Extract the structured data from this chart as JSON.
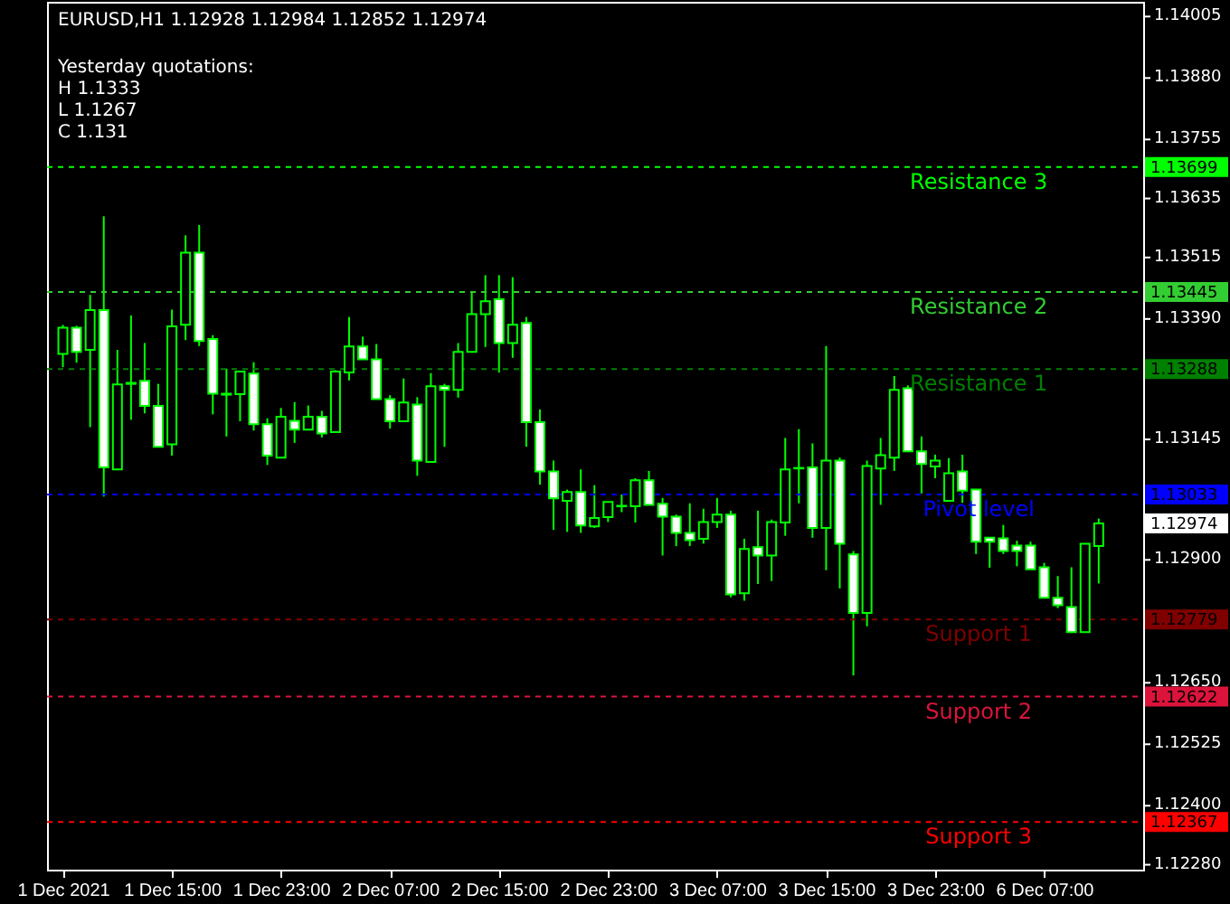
{
  "chart_data": {
    "type": "candlestick",
    "title": "EURUSD,H1  1.12928 1.12984 1.12852 1.12974",
    "color": "#00ff00",
    "categories": [
      "1 Dec 2021",
      null,
      null,
      null,
      null,
      null,
      null,
      null,
      "1 Dec 15:00",
      null,
      null,
      null,
      null,
      null,
      null,
      null,
      "1 Dec 23:00",
      null,
      null,
      null,
      null,
      null,
      null,
      null,
      "2 Dec 07:00",
      null,
      null,
      null,
      null,
      null,
      null,
      null,
      "2 Dec 15:00",
      null,
      null,
      null,
      null,
      null,
      null,
      null,
      "2 Dec 23:00",
      null,
      null,
      null,
      null,
      null,
      null,
      null,
      "3 Dec 07:00",
      null,
      null,
      null,
      null,
      null,
      null,
      null,
      "3 Dec 15:00",
      null,
      null,
      null,
      null,
      null,
      null,
      null,
      "3 Dec 23:00",
      null,
      null,
      null,
      null,
      null,
      null,
      null,
      "6 Dec 07:00",
      null,
      null,
      null,
      null
    ],
    "ohlc": [
      [
        1.13319,
        1.13378,
        1.13292,
        1.13372
      ],
      [
        1.13372,
        1.13376,
        1.13301,
        1.13323
      ],
      [
        1.13327,
        1.13439,
        1.1317,
        1.13408
      ],
      [
        1.13408,
        1.13599,
        1.13029,
        1.13088
      ],
      [
        1.13084,
        1.13327,
        1.13084,
        1.13257
      ],
      [
        1.13258,
        1.13397,
        1.13185,
        1.1326
      ],
      [
        1.13264,
        1.13341,
        1.13198,
        1.13213
      ],
      [
        1.13213,
        1.13258,
        1.1313,
        1.1313
      ],
      [
        1.13135,
        1.13409,
        1.13112,
        1.13375
      ],
      [
        1.13378,
        1.1356,
        1.13347,
        1.13525
      ],
      [
        1.13525,
        1.13581,
        1.13335,
        1.13345
      ],
      [
        1.13349,
        1.13357,
        1.13196,
        1.13238
      ],
      [
        1.13238,
        1.13289,
        1.13151,
        1.13236
      ],
      [
        1.13237,
        1.13283,
        1.13182,
        1.13283
      ],
      [
        1.13279,
        1.13302,
        1.13163,
        1.13176
      ],
      [
        1.13176,
        1.13188,
        1.13093,
        1.13112
      ],
      [
        1.13108,
        1.13209,
        1.13108,
        1.13191
      ],
      [
        1.13183,
        1.13221,
        1.13138,
        1.13165
      ],
      [
        1.13165,
        1.13214,
        1.13165,
        1.13191
      ],
      [
        1.13191,
        1.13203,
        1.13149,
        1.13157
      ],
      [
        1.1316,
        1.13286,
        1.1316,
        1.13283
      ],
      [
        1.13281,
        1.13394,
        1.13265,
        1.13334
      ],
      [
        1.13334,
        1.13354,
        1.13308,
        1.13308
      ],
      [
        1.13308,
        1.13339,
        1.13227,
        1.13227
      ],
      [
        1.13227,
        1.13235,
        1.13167,
        1.13182
      ],
      [
        1.13182,
        1.13269,
        1.13182,
        1.1322
      ],
      [
        1.13216,
        1.13231,
        1.13071,
        1.13102
      ],
      [
        1.13099,
        1.1328,
        1.13099,
        1.13253
      ],
      [
        1.13253,
        1.13258,
        1.1313,
        1.13246
      ],
      [
        1.13246,
        1.13341,
        1.1323,
        1.13323
      ],
      [
        1.13323,
        1.13443,
        1.13323,
        1.134
      ],
      [
        1.134,
        1.13479,
        1.13333,
        1.13426
      ],
      [
        1.1343,
        1.13479,
        1.13281,
        1.13341
      ],
      [
        1.13341,
        1.13475,
        1.13311,
        1.13378
      ],
      [
        1.13382,
        1.13394,
        1.1313,
        1.1318
      ],
      [
        1.1318,
        1.13206,
        1.13053,
        1.1308
      ],
      [
        1.1308,
        1.13102,
        1.12961,
        1.13025
      ],
      [
        1.1302,
        1.13043,
        1.12957,
        1.13038
      ],
      [
        1.13038,
        1.13084,
        1.12955,
        1.1297
      ],
      [
        1.12968,
        1.13052,
        1.12965,
        1.12985
      ],
      [
        1.12987,
        1.13018,
        1.12977,
        1.13018
      ],
      [
        1.13009,
        1.13033,
        1.12997,
        1.1301
      ],
      [
        1.13009,
        1.13066,
        1.12976,
        1.13062
      ],
      [
        1.13062,
        1.13081,
        1.13012,
        1.13012
      ],
      [
        1.13014,
        1.13026,
        1.12909,
        1.12988
      ],
      [
        1.12988,
        1.12992,
        1.12928,
        1.12955
      ],
      [
        1.12955,
        1.13015,
        1.12928,
        1.1294
      ],
      [
        1.12943,
        1.13004,
        1.12933,
        1.12977
      ],
      [
        1.12977,
        1.13026,
        1.12965,
        1.12992
      ],
      [
        1.12992,
        1.13,
        1.12824,
        1.1283
      ],
      [
        1.12832,
        1.12943,
        1.12817,
        1.12922
      ],
      [
        1.12926,
        1.13,
        1.12851,
        1.12909
      ],
      [
        1.12909,
        1.12982,
        1.12857,
        1.12977
      ],
      [
        1.12976,
        1.13148,
        1.12949,
        1.13084
      ],
      [
        1.13086,
        1.13166,
        1.13015,
        1.13087
      ],
      [
        1.13088,
        1.13137,
        1.12945,
        1.12965
      ],
      [
        1.12965,
        1.13335,
        1.12879,
        1.13102
      ],
      [
        1.13102,
        1.13108,
        1.12842,
        1.12933
      ],
      [
        1.12911,
        1.12918,
        1.12665,
        1.12792
      ],
      [
        1.12792,
        1.13102,
        1.12765,
        1.13091
      ],
      [
        1.13086,
        1.13148,
        1.13012,
        1.13113
      ],
      [
        1.13108,
        1.13274,
        1.13081,
        1.13246
      ],
      [
        1.13249,
        1.13255,
        1.13121,
        1.13121
      ],
      [
        1.13121,
        1.13151,
        1.13035,
        1.13095
      ],
      [
        1.1309,
        1.13114,
        1.13066,
        1.13102
      ],
      [
        1.1302,
        1.13107,
        1.1302,
        1.13076
      ],
      [
        1.1308,
        1.13114,
        1.13016,
        1.13041
      ],
      [
        1.13043,
        1.13043,
        1.12912,
        1.12937
      ],
      [
        1.12945,
        1.12945,
        1.12884,
        1.12937
      ],
      [
        1.12944,
        1.12971,
        1.12912,
        1.12918
      ],
      [
        1.12929,
        1.12939,
        1.12887,
        1.12918
      ],
      [
        1.12929,
        1.12937,
        1.12881,
        1.12881
      ],
      [
        1.12885,
        1.12894,
        1.12823,
        1.12823
      ],
      [
        1.12823,
        1.12867,
        1.12802,
        1.12808
      ],
      [
        1.12804,
        1.12885,
        1.12753,
        1.12753
      ],
      [
        1.12753,
        1.12933,
        1.12753,
        1.12933
      ],
      [
        1.12928,
        1.12984,
        1.12852,
        1.12974
      ]
    ],
    "ylim": [
      1.1227,
      1.14035
    ],
    "yticks": [
      {
        "value": 1.14005,
        "label": "1.14005"
      },
      {
        "value": 1.1388,
        "label": "1.13880"
      },
      {
        "value": 1.13755,
        "label": "1.13755"
      },
      {
        "value": 1.13635,
        "label": "1.13635"
      },
      {
        "value": 1.13515,
        "label": "1.13515"
      },
      {
        "value": 1.1339,
        "label": "1.13390"
      },
      {
        "value": 1.13145,
        "label": "1.13145"
      },
      {
        "value": 1.129,
        "label": "1.12900"
      },
      {
        "value": 1.1265,
        "label": "1.12650"
      },
      {
        "value": 1.12525,
        "label": "1.12525"
      },
      {
        "value": 1.124,
        "label": "1.12400"
      },
      {
        "value": 1.1228,
        "label": "1.12280"
      }
    ],
    "ref_lines": [
      {
        "axis": "y",
        "value": 1.13699,
        "label": "Resistance 3",
        "color": "#00ff00",
        "line_style": "dashed"
      },
      {
        "axis": "y",
        "value": 1.13445,
        "label": "Resistance 2",
        "color": "#32cd32",
        "line_style": "dashed"
      },
      {
        "axis": "y",
        "value": 1.13288,
        "label": "Resistance 1",
        "color": "#008000",
        "line_style": "dashed"
      },
      {
        "axis": "y",
        "value": 1.13033,
        "label": "Pivot level",
        "color": "#0000ff",
        "line_style": "dashed"
      },
      {
        "axis": "y",
        "value": 1.12779,
        "label": "Support 1",
        "color": "#800000",
        "line_style": "dashed"
      },
      {
        "axis": "y",
        "value": 1.12622,
        "label": "Support 2",
        "color": "#dc143c",
        "line_style": "dashed"
      },
      {
        "axis": "y",
        "value": 1.12367,
        "label": "Support 3",
        "color": "#ff0000",
        "line_style": "dashed"
      }
    ],
    "annotations": [
      "Yesterday quotations:",
      "H 1.1333",
      "L 1.1267",
      "C 1.131",
      "1.13699",
      "1.13445",
      "1.13288",
      "1.13033",
      "1.12779",
      "1.12622",
      "1.12367",
      "1.12974"
    ]
  }
}
